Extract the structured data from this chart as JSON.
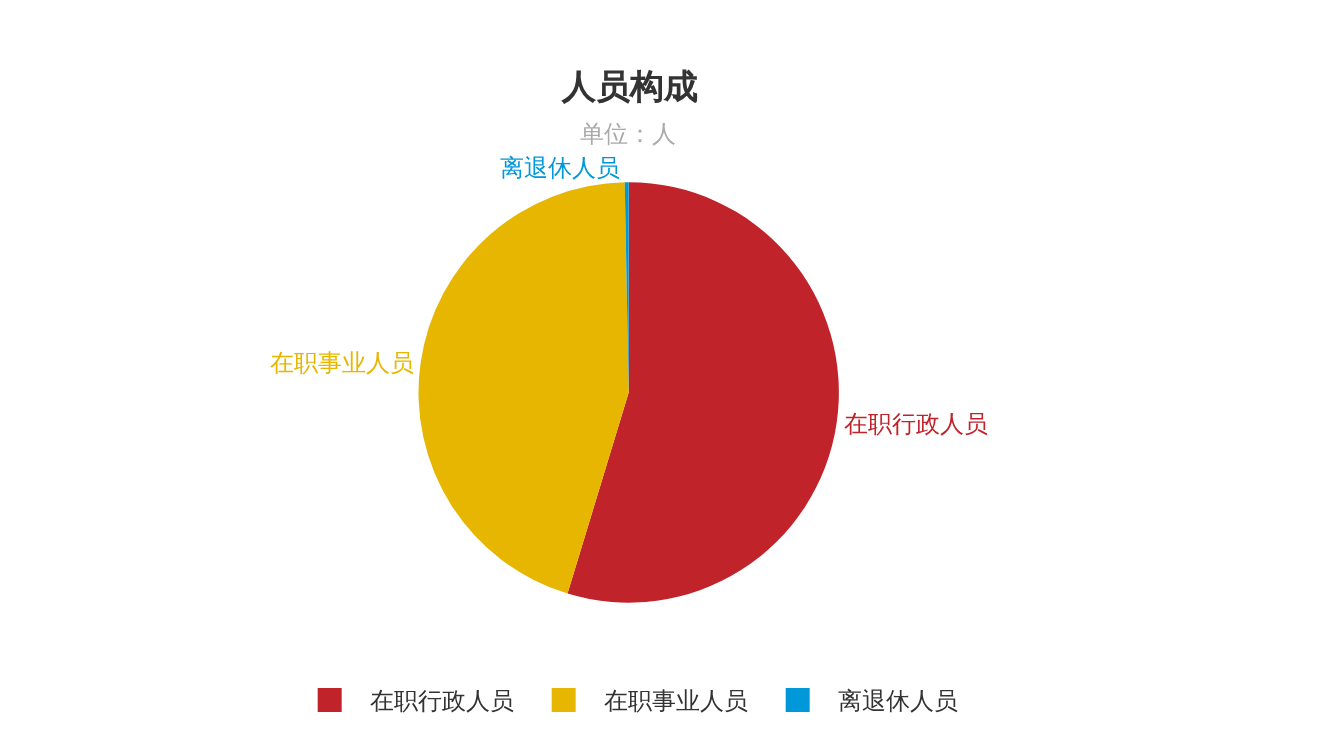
{
  "chart_data": {
    "type": "pie",
    "title": "人员构成",
    "subtitle": "单位：人",
    "categories": [
      "在职行政人员",
      "在职事业人员",
      "离退休人员"
    ],
    "values": [
      54.7,
      45,
      0.3
    ],
    "colors": [
      "#c1232b",
      "#e6b600",
      "#0098d9"
    ],
    "legend": "bottom"
  }
}
